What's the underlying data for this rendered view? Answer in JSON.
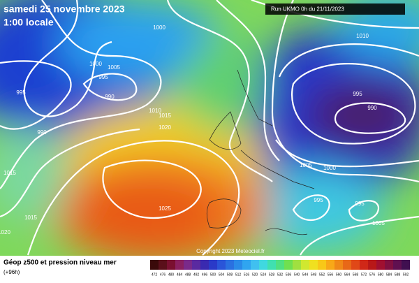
{
  "header": {
    "title": "samedi 25 novembre 2023",
    "subtitle": "1:00 locale",
    "run": "Run UKMO 0h du 21/11/2023"
  },
  "isobar_labels": [
    "1000",
    "1000",
    "1005",
    "995",
    "990",
    "995",
    "990",
    "1015",
    "1015",
    "1020",
    "1010",
    "1015",
    "1020",
    "1025",
    "1010",
    "995",
    "990",
    "1005",
    "1000",
    "995",
    "995",
    "1005"
  ],
  "copyright": "Copyright 2023 Meteociel.fr",
  "footer": {
    "title": "Géop z500 et pression niveau mer",
    "lead": "(+96h)"
  },
  "colorbar": {
    "labels": [
      "472",
      "476",
      "480",
      "484",
      "488",
      "492",
      "496",
      "500",
      "504",
      "508",
      "512",
      "516",
      "520",
      "524",
      "528",
      "532",
      "536",
      "540",
      "544",
      "548",
      "552",
      "556",
      "560",
      "564",
      "568",
      "572",
      "576",
      "580",
      "584",
      "588",
      "592"
    ]
  }
}
